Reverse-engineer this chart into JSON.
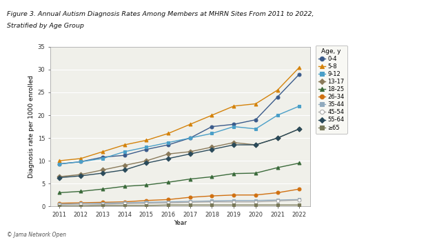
{
  "years": [
    2011,
    2012,
    2013,
    2014,
    2015,
    2016,
    2017,
    2018,
    2019,
    2020,
    2021,
    2022
  ],
  "series": {
    "0-4": [
      9.3,
      9.8,
      10.8,
      11.2,
      12.5,
      13.5,
      15.0,
      17.5,
      18.0,
      19.0,
      24.0,
      29.0
    ],
    "5-8": [
      10.0,
      10.5,
      12.0,
      13.5,
      14.5,
      16.0,
      18.0,
      20.0,
      22.0,
      22.5,
      25.5,
      30.5
    ],
    "9-12": [
      9.3,
      9.8,
      10.5,
      12.0,
      13.0,
      14.0,
      15.0,
      16.0,
      17.5,
      17.0,
      20.0,
      22.0
    ],
    "13-17": [
      6.5,
      7.0,
      8.0,
      9.0,
      10.0,
      11.5,
      12.0,
      13.0,
      14.0,
      13.5,
      15.0,
      17.0
    ],
    "18-25": [
      3.0,
      3.3,
      3.8,
      4.4,
      4.7,
      5.3,
      6.0,
      6.5,
      7.2,
      7.3,
      8.5,
      9.5
    ],
    "26-34": [
      0.7,
      0.8,
      0.9,
      1.0,
      1.3,
      1.5,
      2.0,
      2.3,
      2.5,
      2.5,
      3.0,
      3.8
    ],
    "35-44": [
      0.5,
      0.6,
      0.7,
      0.8,
      0.9,
      1.0,
      1.1,
      1.2,
      1.3,
      1.3,
      1.4,
      1.5
    ],
    "45-54": [
      0.4,
      0.5,
      0.5,
      0.6,
      0.7,
      0.8,
      0.9,
      1.0,
      1.0,
      1.0,
      1.2,
      1.4
    ],
    "55-64": [
      6.3,
      6.7,
      7.3,
      8.0,
      9.5,
      10.5,
      11.5,
      12.5,
      13.5,
      13.5,
      15.0,
      17.0
    ],
    ">=65": [
      0.1,
      0.1,
      0.2,
      0.2,
      0.2,
      0.3,
      0.3,
      0.3,
      0.3,
      0.3,
      0.3,
      0.3
    ]
  },
  "colors": {
    "0-4": "#3a5a8a",
    "5-8": "#d4820a",
    "9-12": "#4a9fc8",
    "13-17": "#8a7a5a",
    "18-25": "#3a6a3a",
    "26-34": "#d07010",
    "35-44": "#90aabe",
    "45-54": "#aaaaaa",
    "55-64": "#2a4a5a",
    ">=65": "#787858"
  },
  "markers": {
    "0-4": "o",
    "5-8": "^",
    "9-12": "s",
    "13-17": "D",
    "18-25": "^",
    "26-34": "o",
    "35-44": "s",
    "45-54": "o",
    "55-64": "D",
    ">=65": "s"
  },
  "markerfacecolors": {
    "0-4": "#3a5a8a",
    "5-8": "#d4820a",
    "9-12": "#4a9fc8",
    "13-17": "#8a7a5a",
    "18-25": "#3a6a3a",
    "26-34": "#d07010",
    "35-44": "#90aabe",
    "45-54": "white",
    "55-64": "#2a4a5a",
    ">=65": "#787858"
  },
  "title_line1": "Figure 3. Annual Autism Diagnosis Rates Among Members at MHRN Sites From 2011 to 2022,",
  "title_line2": "Stratified by Age Group",
  "ylabel": "Diagnosis rate per 1000 enrolled",
  "xlabel": "Year",
  "legend_title": "Age, y",
  "legend_labels": [
    "0-4",
    "5-8",
    "9-12",
    "13-17",
    "18-25",
    "26-34",
    "35-44",
    "45-54",
    "55-64",
    ">=65"
  ],
  "legend_display": [
    "0-4",
    "5-8",
    "9-12",
    "13-17",
    "18-25",
    "26-34",
    "35-44",
    "45-54",
    "55-64",
    "≥65"
  ],
  "ylim": [
    0,
    35
  ],
  "yticks": [
    0,
    5,
    10,
    15,
    20,
    25,
    30,
    35
  ],
  "background_color": "#ffffff",
  "plot_bg": "#f0f0ea",
  "watermark": "© Jama Network Open",
  "top_bar_color": "#c8395e"
}
